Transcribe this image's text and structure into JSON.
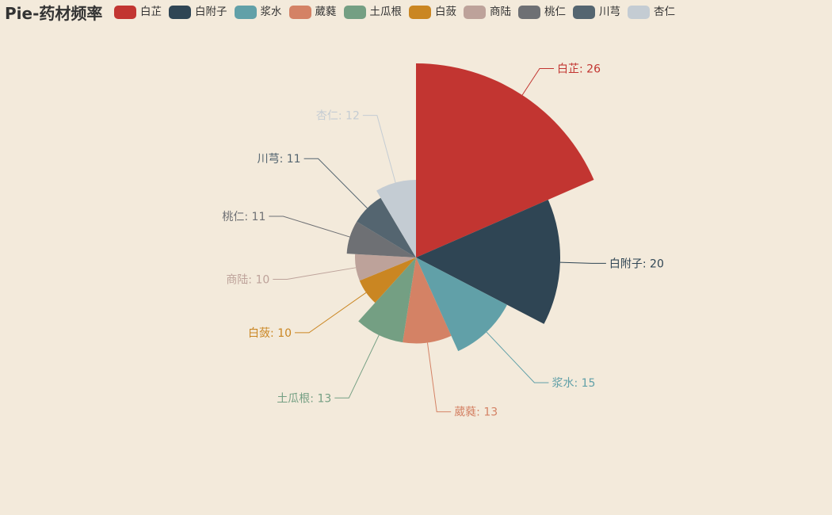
{
  "chart_data": {
    "type": "pie",
    "variant": "rose-radius",
    "title": "Pie-药材频率",
    "legend_position": "top-left",
    "label_format": "{name}: {value}",
    "slices": [
      {
        "name": "白芷",
        "value": 26,
        "color": "#c23531"
      },
      {
        "name": "白附子",
        "value": 20,
        "color": "#2f4554"
      },
      {
        "name": "浆水",
        "value": 15,
        "color": "#61a0a8"
      },
      {
        "name": "葳蕤",
        "value": 13,
        "color": "#d48265"
      },
      {
        "name": "土瓜根",
        "value": 13,
        "color": "#749f83"
      },
      {
        "name": "白蔹",
        "value": 10,
        "color": "#ca8622"
      },
      {
        "name": "商陆",
        "value": 10,
        "color": "#bda29a"
      },
      {
        "name": "桃仁",
        "value": 11,
        "color": "#6e7074"
      },
      {
        "name": "川芎",
        "value": 11,
        "color": "#546570"
      },
      {
        "name": "杏仁",
        "value": 12,
        "color": "#c4ccd3"
      }
    ]
  },
  "background_color": "#f3eadb"
}
